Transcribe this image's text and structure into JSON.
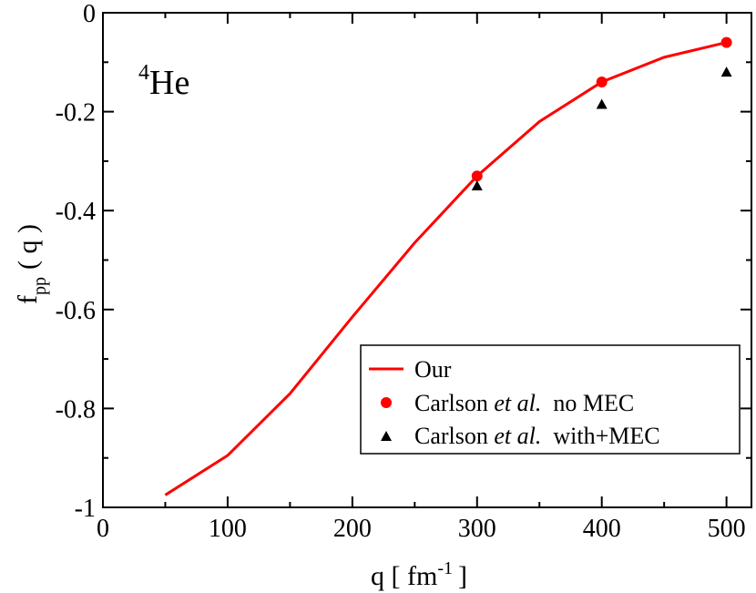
{
  "chart_data": {
    "type": "line",
    "xlabel": "q [ fm",
    "xlabel_sup": "-1",
    "xlabel_tail": "]",
    "ylabel": "f",
    "ylabel_sub": "pp",
    "ylabel_tail": "( q )",
    "annotation": {
      "sup": "4",
      "text": "He"
    },
    "xlim": [
      0,
      520
    ],
    "ylim": [
      -1,
      0
    ],
    "xticks": [
      0,
      100,
      200,
      300,
      400,
      500
    ],
    "xtick_labels": [
      "0",
      "100",
      "200",
      "300",
      "400",
      "500"
    ],
    "yticks": [
      0,
      -0.2,
      -0.4,
      -0.6,
      -0.8,
      -1
    ],
    "ytick_labels": [
      "0",
      "-0.2",
      "-0.4",
      "-0.6",
      "-0.8",
      "-1"
    ],
    "grid": false,
    "legend_position": "bottom-right",
    "series": [
      {
        "name": "Our",
        "kind": "line",
        "color": "#ff0000",
        "x": [
          50,
          100,
          150,
          200,
          250,
          300,
          350,
          400,
          450,
          500
        ],
        "y": [
          -0.975,
          -0.895,
          -0.77,
          -0.615,
          -0.465,
          -0.33,
          -0.22,
          -0.14,
          -0.09,
          -0.06
        ]
      },
      {
        "name": "Carlson",
        "name_italic": "et al.",
        "name_suffix": "no MEC",
        "kind": "circle",
        "color": "#ff0000",
        "x": [
          300,
          400,
          500
        ],
        "y": [
          -0.33,
          -0.14,
          -0.06
        ]
      },
      {
        "name": "Carlson",
        "name_italic": "et al.",
        "name_suffix": "with+MEC",
        "kind": "triangle",
        "color": "#000000",
        "x": [
          300,
          400,
          500
        ],
        "y": [
          -0.35,
          -0.185,
          -0.12
        ]
      }
    ]
  }
}
